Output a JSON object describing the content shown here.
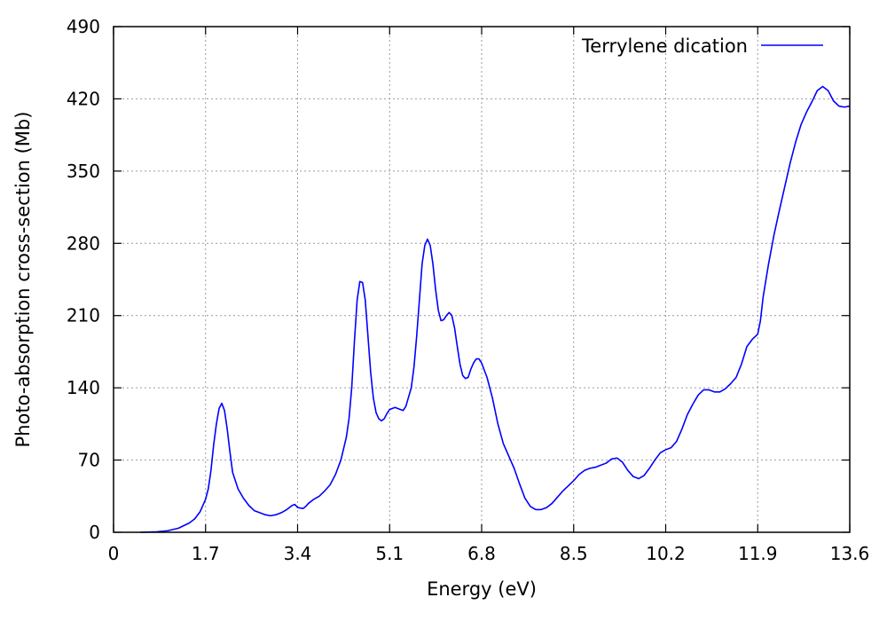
{
  "chart_data": {
    "type": "line",
    "title": "",
    "xlabel": "Energy (eV)",
    "ylabel": "Photo-absorption cross-section (Mb)",
    "xlim": [
      0,
      13.6
    ],
    "ylim": [
      0,
      490
    ],
    "xticks": [
      0,
      1.7,
      3.4,
      5.1,
      6.8,
      8.5,
      10.2,
      11.9,
      13.6
    ],
    "yticks": [
      0,
      70,
      140,
      210,
      280,
      350,
      420,
      490
    ],
    "xtick_labels": [
      "0",
      "1.7",
      "3.4",
      "5.1",
      "6.8",
      "8.5",
      "10.2",
      "11.9",
      "13.6"
    ],
    "ytick_labels": [
      "0",
      "70",
      "140",
      "210",
      "280",
      "350",
      "420",
      "490"
    ],
    "grid": true,
    "legend": {
      "position": "top-right"
    },
    "series": [
      {
        "name": "Terrylene dication",
        "color": "#0000ff",
        "points": [
          [
            0.5,
            0
          ],
          [
            0.8,
            0.5
          ],
          [
            1.0,
            1.5
          ],
          [
            1.2,
            4
          ],
          [
            1.4,
            9
          ],
          [
            1.5,
            13
          ],
          [
            1.6,
            20
          ],
          [
            1.7,
            32
          ],
          [
            1.75,
            42
          ],
          [
            1.8,
            60
          ],
          [
            1.85,
            85
          ],
          [
            1.9,
            105
          ],
          [
            1.95,
            120
          ],
          [
            2.0,
            125
          ],
          [
            2.05,
            118
          ],
          [
            2.1,
            100
          ],
          [
            2.15,
            78
          ],
          [
            2.2,
            58
          ],
          [
            2.3,
            42
          ],
          [
            2.4,
            33
          ],
          [
            2.5,
            26
          ],
          [
            2.6,
            21
          ],
          [
            2.7,
            19
          ],
          [
            2.8,
            17
          ],
          [
            2.9,
            16
          ],
          [
            3.0,
            17
          ],
          [
            3.1,
            19
          ],
          [
            3.2,
            22
          ],
          [
            3.3,
            26
          ],
          [
            3.35,
            27
          ],
          [
            3.4,
            24
          ],
          [
            3.5,
            23
          ],
          [
            3.55,
            25
          ],
          [
            3.6,
            28
          ],
          [
            3.7,
            32
          ],
          [
            3.8,
            35
          ],
          [
            3.9,
            40
          ],
          [
            4.0,
            46
          ],
          [
            4.1,
            56
          ],
          [
            4.2,
            70
          ],
          [
            4.3,
            92
          ],
          [
            4.35,
            110
          ],
          [
            4.4,
            140
          ],
          [
            4.45,
            185
          ],
          [
            4.5,
            225
          ],
          [
            4.55,
            243
          ],
          [
            4.6,
            242
          ],
          [
            4.65,
            225
          ],
          [
            4.7,
            190
          ],
          [
            4.75,
            155
          ],
          [
            4.8,
            130
          ],
          [
            4.85,
            116
          ],
          [
            4.9,
            110
          ],
          [
            4.95,
            108
          ],
          [
            5.0,
            110
          ],
          [
            5.05,
            115
          ],
          [
            5.1,
            119
          ],
          [
            5.2,
            121
          ],
          [
            5.3,
            119
          ],
          [
            5.35,
            118
          ],
          [
            5.4,
            122
          ],
          [
            5.5,
            140
          ],
          [
            5.55,
            160
          ],
          [
            5.6,
            190
          ],
          [
            5.65,
            225
          ],
          [
            5.7,
            260
          ],
          [
            5.75,
            278
          ],
          [
            5.8,
            284
          ],
          [
            5.85,
            278
          ],
          [
            5.9,
            260
          ],
          [
            5.95,
            235
          ],
          [
            6.0,
            215
          ],
          [
            6.05,
            205
          ],
          [
            6.1,
            206
          ],
          [
            6.15,
            210
          ],
          [
            6.2,
            213
          ],
          [
            6.25,
            210
          ],
          [
            6.3,
            198
          ],
          [
            6.35,
            180
          ],
          [
            6.4,
            163
          ],
          [
            6.45,
            152
          ],
          [
            6.5,
            149
          ],
          [
            6.55,
            150
          ],
          [
            6.6,
            158
          ],
          [
            6.65,
            164
          ],
          [
            6.7,
            168
          ],
          [
            6.75,
            168
          ],
          [
            6.8,
            164
          ],
          [
            6.9,
            150
          ],
          [
            7.0,
            130
          ],
          [
            7.1,
            105
          ],
          [
            7.2,
            86
          ],
          [
            7.3,
            74
          ],
          [
            7.4,
            62
          ],
          [
            7.5,
            47
          ],
          [
            7.6,
            33
          ],
          [
            7.7,
            25
          ],
          [
            7.8,
            22
          ],
          [
            7.9,
            22
          ],
          [
            8.0,
            24
          ],
          [
            8.1,
            28
          ],
          [
            8.2,
            34
          ],
          [
            8.3,
            40
          ],
          [
            8.4,
            45
          ],
          [
            8.5,
            50
          ],
          [
            8.6,
            56
          ],
          [
            8.7,
            60
          ],
          [
            8.8,
            62
          ],
          [
            8.9,
            63
          ],
          [
            9.0,
            65
          ],
          [
            9.1,
            67
          ],
          [
            9.2,
            71
          ],
          [
            9.3,
            72
          ],
          [
            9.4,
            68
          ],
          [
            9.5,
            60
          ],
          [
            9.6,
            54
          ],
          [
            9.7,
            52
          ],
          [
            9.8,
            55
          ],
          [
            9.9,
            62
          ],
          [
            10.0,
            70
          ],
          [
            10.1,
            77
          ],
          [
            10.2,
            80
          ],
          [
            10.3,
            82
          ],
          [
            10.4,
            88
          ],
          [
            10.5,
            100
          ],
          [
            10.6,
            114
          ],
          [
            10.7,
            124
          ],
          [
            10.8,
            133
          ],
          [
            10.9,
            138
          ],
          [
            11.0,
            138
          ],
          [
            11.1,
            136
          ],
          [
            11.2,
            136
          ],
          [
            11.3,
            139
          ],
          [
            11.4,
            144
          ],
          [
            11.5,
            150
          ],
          [
            11.6,
            163
          ],
          [
            11.7,
            180
          ],
          [
            11.8,
            187
          ],
          [
            11.9,
            192
          ],
          [
            11.95,
            205
          ],
          [
            12.0,
            228
          ],
          [
            12.1,
            260
          ],
          [
            12.2,
            288
          ],
          [
            12.3,
            312
          ],
          [
            12.4,
            335
          ],
          [
            12.5,
            358
          ],
          [
            12.6,
            378
          ],
          [
            12.7,
            395
          ],
          [
            12.8,
            407
          ],
          [
            12.9,
            417
          ],
          [
            13.0,
            428
          ],
          [
            13.1,
            432
          ],
          [
            13.2,
            428
          ],
          [
            13.3,
            418
          ],
          [
            13.4,
            413
          ],
          [
            13.5,
            412
          ],
          [
            13.6,
            413
          ]
        ]
      }
    ]
  }
}
